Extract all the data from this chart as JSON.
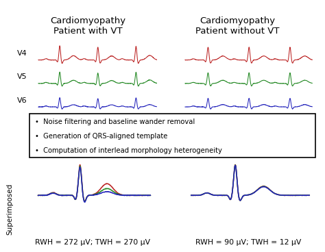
{
  "title_left": "Cardiomyopathy\nPatient with VT",
  "title_right": "Cardiomyopathy\nPatient without VT",
  "lead_labels": [
    "V4",
    "V5",
    "V6"
  ],
  "lead_colors": [
    "#bb2222",
    "#228822",
    "#2222bb"
  ],
  "superimposed_label": "Superimposed",
  "caption_left": "RWH = 272 μV; TWH = 270 μV",
  "caption_right": "RWH = 90 μV; TWH = 12 μV",
  "bullet_lines": [
    "  Noise filtering and baseline wander removal",
    "  Generation of QRS-aligned template",
    "  Computation of interlead morphology heterogeneity"
  ],
  "background_color": "#ffffff"
}
